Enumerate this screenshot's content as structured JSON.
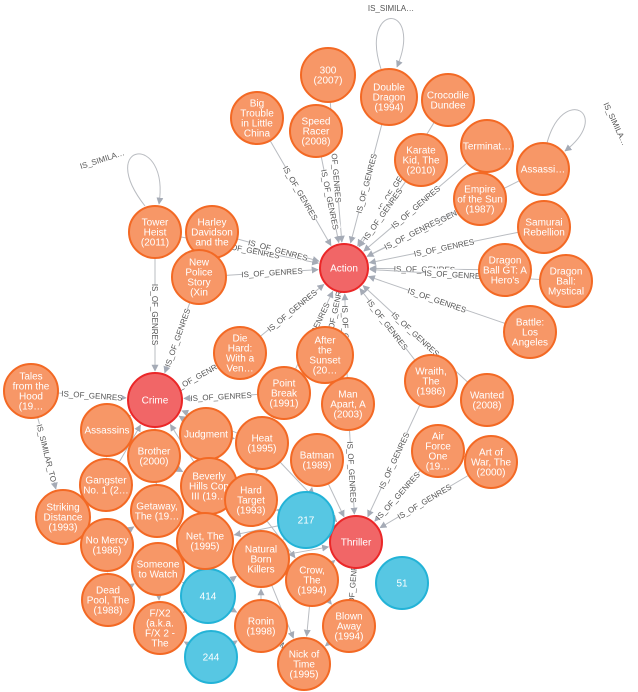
{
  "graph": {
    "colors": {
      "movie_fill": "#f79767",
      "movie_stroke": "#f36924",
      "genre_fill": "#f16667",
      "genre_stroke": "#eb2728",
      "user_fill": "#57c7e3",
      "user_stroke": "#23b3d7",
      "edge": "#b9bcc1"
    },
    "nodes": [
      {
        "id": "action",
        "type": "genre",
        "lines": [
          "Action"
        ]
      },
      {
        "id": "crime",
        "type": "genre",
        "lines": [
          "Crime"
        ]
      },
      {
        "id": "thriller",
        "type": "genre",
        "lines": [
          "Thriller"
        ]
      },
      {
        "id": "u217",
        "type": "user",
        "lines": [
          "217"
        ]
      },
      {
        "id": "u414",
        "type": "user",
        "lines": [
          "414"
        ]
      },
      {
        "id": "u244",
        "type": "user",
        "lines": [
          "244"
        ]
      },
      {
        "id": "u51",
        "type": "user",
        "lines": [
          "51"
        ]
      },
      {
        "id": "m300",
        "type": "movie",
        "lines": [
          "300",
          "(2007)"
        ]
      },
      {
        "id": "doubledragon",
        "type": "movie",
        "lines": [
          "Double",
          "Dragon",
          "(1994)"
        ]
      },
      {
        "id": "crocodile",
        "type": "movie",
        "lines": [
          "Crocodile",
          "Dundee"
        ]
      },
      {
        "id": "bigtrouble",
        "type": "movie",
        "lines": [
          "Big",
          "Trouble",
          "in Little",
          "China"
        ]
      },
      {
        "id": "speedracer",
        "type": "movie",
        "lines": [
          "Speed",
          "Racer",
          "(2008)"
        ]
      },
      {
        "id": "karate",
        "type": "movie",
        "lines": [
          "Karate",
          "Kid, The",
          "(2010)"
        ]
      },
      {
        "id": "terminat",
        "type": "movie",
        "lines": [
          "Terminat…"
        ]
      },
      {
        "id": "assassi",
        "type": "movie",
        "lines": [
          "Assassi…"
        ]
      },
      {
        "id": "empire",
        "type": "movie",
        "lines": [
          "Empire",
          "of the Sun",
          "(1987)"
        ]
      },
      {
        "id": "samurai",
        "type": "movie",
        "lines": [
          "Samurai",
          "Rebellion"
        ]
      },
      {
        "id": "towerheist",
        "type": "movie",
        "lines": [
          "Tower",
          "Heist",
          "(2011)"
        ]
      },
      {
        "id": "harley",
        "type": "movie",
        "lines": [
          "Harley",
          "Davidson",
          "and the"
        ]
      },
      {
        "id": "newpolice",
        "type": "movie",
        "lines": [
          "New",
          "Police",
          "Story",
          "(Xin"
        ]
      },
      {
        "id": "dbgt",
        "type": "movie",
        "lines": [
          "Dragon",
          "Ball GT: A",
          "Hero's"
        ]
      },
      {
        "id": "dbmystical",
        "type": "movie",
        "lines": [
          "Dragon",
          "Ball:",
          "Mystical"
        ]
      },
      {
        "id": "battle",
        "type": "movie",
        "lines": [
          "Battle:",
          "Los",
          "Angeles"
        ]
      },
      {
        "id": "diehard",
        "type": "movie",
        "lines": [
          "Die",
          "Hard:",
          "With a",
          "Ven…"
        ]
      },
      {
        "id": "aftersunset",
        "type": "movie",
        "lines": [
          "After",
          "the",
          "Sunset",
          "(20…"
        ]
      },
      {
        "id": "tales",
        "type": "movie",
        "lines": [
          "Tales",
          "from the",
          "Hood",
          "(19…"
        ]
      },
      {
        "id": "pointbreak",
        "type": "movie",
        "lines": [
          "Point",
          "Break",
          "(1991)"
        ]
      },
      {
        "id": "manapart",
        "type": "movie",
        "lines": [
          "Man",
          "Apart, A",
          "(2003)"
        ]
      },
      {
        "id": "wraith",
        "type": "movie",
        "lines": [
          "Wraith,",
          "The",
          "(1986)"
        ]
      },
      {
        "id": "wanted",
        "type": "movie",
        "lines": [
          "Wanted",
          "(2008)"
        ]
      },
      {
        "id": "assassins",
        "type": "movie",
        "lines": [
          "Assassins"
        ]
      },
      {
        "id": "judgment",
        "type": "movie",
        "lines": [
          "Judgment"
        ]
      },
      {
        "id": "brother",
        "type": "movie",
        "lines": [
          "Brother",
          "(2000)"
        ]
      },
      {
        "id": "heat",
        "type": "movie",
        "lines": [
          "Heat",
          "(1995)"
        ]
      },
      {
        "id": "airforce",
        "type": "movie",
        "lines": [
          "Air",
          "Force",
          "One",
          "(19…"
        ]
      },
      {
        "id": "artofwar",
        "type": "movie",
        "lines": [
          "Art of",
          "War, The",
          "(2000)"
        ]
      },
      {
        "id": "batman",
        "type": "movie",
        "lines": [
          "Batman",
          "(1989)"
        ]
      },
      {
        "id": "gangster",
        "type": "movie",
        "lines": [
          "Gangster",
          "No. 1 (2…"
        ]
      },
      {
        "id": "beverly",
        "type": "movie",
        "lines": [
          "Beverly",
          "Hills Cop",
          "III (19…"
        ]
      },
      {
        "id": "striking",
        "type": "movie",
        "lines": [
          "Striking",
          "Distance",
          "(1993)"
        ]
      },
      {
        "id": "getaway",
        "type": "movie",
        "lines": [
          "Getaway,",
          "The (19…"
        ]
      },
      {
        "id": "hardtarget",
        "type": "movie",
        "lines": [
          "Hard",
          "Target",
          "(1993)"
        ]
      },
      {
        "id": "nomercy",
        "type": "movie",
        "lines": [
          "No Mercy",
          "(1986)"
        ]
      },
      {
        "id": "net",
        "type": "movie",
        "lines": [
          "Net, The",
          "(1995)"
        ]
      },
      {
        "id": "someone",
        "type": "movie",
        "lines": [
          "Someone",
          "to Watch"
        ]
      },
      {
        "id": "natural",
        "type": "movie",
        "lines": [
          "Natural",
          "Born",
          "Killers"
        ]
      },
      {
        "id": "crow",
        "type": "movie",
        "lines": [
          "Crow,",
          "The",
          "(1994)"
        ]
      },
      {
        "id": "deadpool",
        "type": "movie",
        "lines": [
          "Dead",
          "Pool, The",
          "(1988)"
        ]
      },
      {
        "id": "fx2",
        "type": "movie",
        "lines": [
          "F/X2",
          "(a.k.a.",
          "F/X 2 -",
          "The"
        ]
      },
      {
        "id": "ronin",
        "type": "movie",
        "lines": [
          "Ronin",
          "(1998)"
        ]
      },
      {
        "id": "blownaway",
        "type": "movie",
        "lines": [
          "Blown",
          "Away",
          "(1994)"
        ]
      },
      {
        "id": "nickoftime",
        "type": "movie",
        "lines": [
          "Nick of",
          "Time",
          "(1995)"
        ]
      }
    ],
    "edges": [
      {
        "from": "m300",
        "to": "action",
        "label": "IS_OF_GENRES"
      },
      {
        "from": "doubledragon",
        "to": "action",
        "label": "IS_OF_GENRES"
      },
      {
        "from": "crocodile",
        "to": "action",
        "label": "IS_OF_GENRES"
      },
      {
        "from": "bigtrouble",
        "to": "action",
        "label": "IS_OF_GENRES"
      },
      {
        "from": "speedracer",
        "to": "action",
        "label": "IS_OF_GENRES"
      },
      {
        "from": "karate",
        "to": "action",
        "label": "IS_OF_GENRES"
      },
      {
        "from": "terminat",
        "to": "action",
        "label": "IS_OF_GENRES"
      },
      {
        "from": "assassi",
        "to": "action",
        "label": "IS_OF_GENRES"
      },
      {
        "from": "empire",
        "to": "action",
        "label": "IS_OF_GENRES"
      },
      {
        "from": "samurai",
        "to": "action",
        "label": "IS_OF_GENRES"
      },
      {
        "from": "towerheist",
        "to": "action",
        "label": "IS_OF_GENRES"
      },
      {
        "from": "harley",
        "to": "action",
        "label": "IS_OF_GENRES"
      },
      {
        "from": "newpolice",
        "to": "action",
        "label": "IS_OF_GENRES"
      },
      {
        "from": "dbgt",
        "to": "action",
        "label": "IS_OF_GENRES"
      },
      {
        "from": "dbmystical",
        "to": "action",
        "label": "IS_OF_GENRES"
      },
      {
        "from": "battle",
        "to": "action",
        "label": "IS_OF_GENRES"
      },
      {
        "from": "diehard",
        "to": "action",
        "label": "IS_OF_GENRES"
      },
      {
        "from": "aftersunset",
        "to": "action",
        "label": "IS_OF_GENRES"
      },
      {
        "from": "manapart",
        "to": "action",
        "label": "IS_OF_GENRES"
      },
      {
        "from": "wraith",
        "to": "action",
        "label": "IS_OF_GENRES"
      },
      {
        "from": "wanted",
        "to": "action",
        "label": "IS_OF_GENRES"
      },
      {
        "from": "pointbreak",
        "to": "action",
        "label": "IS_OF_GENRES"
      },
      {
        "from": "towerheist",
        "to": "crime",
        "label": "IS_OF_GENRES"
      },
      {
        "from": "newpolice",
        "to": "crime",
        "label": "IS_OF_GENRES"
      },
      {
        "from": "tales",
        "to": "crime",
        "label": "IS_OF_GENRES"
      },
      {
        "from": "diehard",
        "to": "crime",
        "label": "IS_OF_GENRES"
      },
      {
        "from": "pointbreak",
        "to": "crime",
        "label": "IS_OF_GENRES"
      },
      {
        "from": "assassins",
        "to": "crime",
        "label": ""
      },
      {
        "from": "judgment",
        "to": "crime",
        "label": ""
      },
      {
        "from": "brother",
        "to": "crime",
        "label": ""
      },
      {
        "from": "gangster",
        "to": "crime",
        "label": ""
      },
      {
        "from": "beverly",
        "to": "crime",
        "label": ""
      },
      {
        "from": "getaway",
        "to": "crime",
        "label": ""
      },
      {
        "from": "heat",
        "to": "crime",
        "label": ""
      },
      {
        "from": "wraith",
        "to": "thriller",
        "label": "IS_OF_GENRES"
      },
      {
        "from": "airforce",
        "to": "thriller",
        "label": "IS_OF_GENRES"
      },
      {
        "from": "artofwar",
        "to": "thriller",
        "label": "IS_OF_GENRES"
      },
      {
        "from": "manapart",
        "to": "thriller",
        "label": "IS_OF_GENRES"
      },
      {
        "from": "batman",
        "to": "thriller",
        "label": ""
      },
      {
        "from": "heat",
        "to": "thriller",
        "label": ""
      },
      {
        "from": "hardtarget",
        "to": "thriller",
        "label": ""
      },
      {
        "from": "crow",
        "to": "thriller",
        "label": ""
      },
      {
        "from": "blownaway",
        "to": "thriller",
        "label": "IS_OF_GENRES"
      },
      {
        "from": "natural",
        "to": "thriller",
        "label": ""
      },
      {
        "from": "tales",
        "to": "striking",
        "label": "IS_SIMILAR_TO"
      },
      {
        "from": "u217",
        "to": "hardtarget",
        "label": ""
      },
      {
        "from": "u217",
        "to": "net",
        "label": ""
      },
      {
        "from": "u217",
        "to": "batman",
        "label": ""
      },
      {
        "from": "u217",
        "to": "natural",
        "label": ""
      },
      {
        "from": "u414",
        "to": "someone",
        "label": ""
      },
      {
        "from": "u414",
        "to": "fx2",
        "label": ""
      },
      {
        "from": "u414",
        "to": "ronin",
        "label": ""
      },
      {
        "from": "u414",
        "to": "natural",
        "label": ""
      },
      {
        "from": "u414",
        "to": "net",
        "label": ""
      },
      {
        "from": "u244",
        "to": "fx2",
        "label": ""
      },
      {
        "from": "u244",
        "to": "ronin",
        "label": ""
      },
      {
        "from": "ronin",
        "to": "nickoftime",
        "label": "IS_SIMIL…"
      },
      {
        "from": "natural",
        "to": "nickoftime",
        "label": ""
      },
      {
        "from": "crow",
        "to": "nickoftime",
        "label": ""
      },
      {
        "from": "blownaway",
        "to": "nickoftime",
        "label": ""
      },
      {
        "from": "striking",
        "to": "nomercy",
        "label": ""
      },
      {
        "from": "gangster",
        "to": "striking",
        "label": ""
      },
      {
        "from": "nomercy",
        "to": "getaway",
        "label": ""
      },
      {
        "from": "nomercy",
        "to": "deadpool",
        "label": ""
      },
      {
        "from": "deadpool",
        "to": "someone",
        "label": ""
      },
      {
        "from": "getaway",
        "to": "net",
        "label": ""
      },
      {
        "from": "brother",
        "to": "beverly",
        "label": ""
      },
      {
        "from": "judgment",
        "to": "heat",
        "label": ""
      },
      {
        "from": "beverly",
        "to": "hardtarget",
        "label": ""
      },
      {
        "from": "assassins",
        "to": "gangster",
        "label": ""
      },
      {
        "from": "brother",
        "to": "getaway",
        "label": ""
      },
      {
        "from": "judgment",
        "to": "beverly",
        "label": ""
      },
      {
        "from": "heat",
        "to": "hardtarget",
        "label": ""
      },
      {
        "from": "net",
        "to": "natural",
        "label": ""
      },
      {
        "from": "someone",
        "to": "fx2",
        "label": ""
      },
      {
        "from": "crow",
        "to": "blownaway",
        "label": ""
      },
      {
        "from": "natural",
        "to": "crow",
        "label": ""
      },
      {
        "from": "ronin",
        "to": "natural",
        "label": ""
      },
      {
        "from": "hardtarget",
        "to": "crow",
        "label": ""
      }
    ],
    "self_loops": [
      {
        "node": "doubledragon",
        "label": "IS_SIMILA…"
      },
      {
        "node": "towerheist",
        "label": "IS_SIMILA…"
      },
      {
        "node": "assassi",
        "label": "IS_SIMILA…"
      }
    ]
  }
}
